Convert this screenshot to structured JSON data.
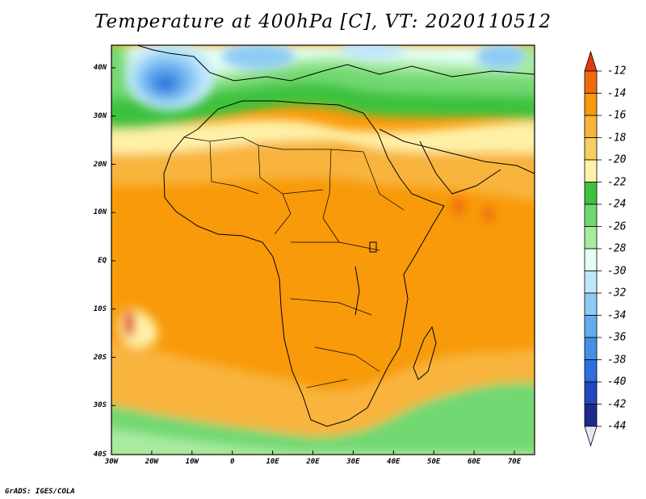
{
  "title": "Temperature at 400hPa [C], VT: 2020110512",
  "credit": "GrADS: IGES/COLA",
  "map": {
    "type": "filled-contour-map",
    "variable": "Temperature",
    "level": "400hPa",
    "units": "C",
    "valid_time": "2020110512",
    "lon_range": [
      -30,
      75
    ],
    "lat_range": [
      -40,
      45
    ]
  },
  "x_ticks": [
    "30W",
    "20W",
    "10W",
    "0",
    "10E",
    "20E",
    "30E",
    "40E",
    "50E",
    "60E",
    "70E"
  ],
  "y_ticks": [
    "40N",
    "30N",
    "20N",
    "10N",
    "EQ",
    "10S",
    "20S",
    "30S",
    "40S"
  ],
  "colorbar": {
    "levels": [
      "-12",
      "-14",
      "-16",
      "-18",
      "-20",
      "-22",
      "-24",
      "-26",
      "-28",
      "-30",
      "-32",
      "-34",
      "-36",
      "-38",
      "-40",
      "-42",
      "-44"
    ],
    "colors": [
      "#e23a0c",
      "#f26a10",
      "#f89a0a",
      "#f8b43c",
      "#f8cf5e",
      "#fff1a8",
      "#3ec23e",
      "#72d872",
      "#a8eba0",
      "#e4fff4",
      "#bfe7fb",
      "#8ecbf4",
      "#62acee",
      "#4590e6",
      "#2f6fdb",
      "#2048c0",
      "#1c2a8c",
      "#101c6a"
    ]
  }
}
